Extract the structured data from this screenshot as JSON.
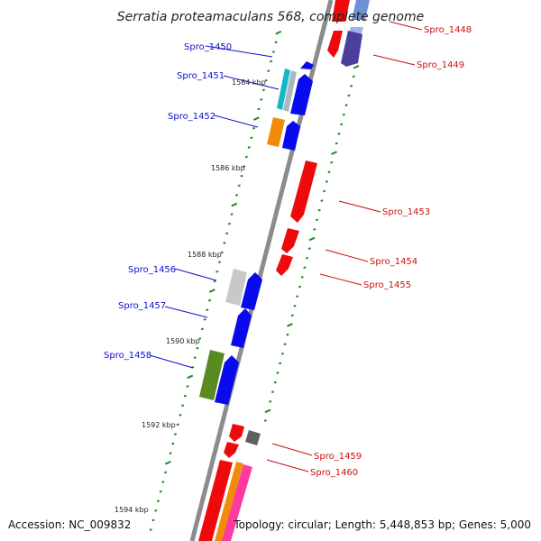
{
  "title": "Serratia proteamaculans 568, complete genome",
  "footer": {
    "accession": "Accession: NC_009832",
    "topology": "Topology: circular; Length: 5,448,853 bp; Genes: 5,000"
  },
  "scale_labels": [
    "1584 kbp",
    "1586 kbp",
    "1588 kbp",
    "1590 kbp",
    "1592 kbp",
    "1594 kbp"
  ],
  "gene_labels_left": [
    "Spro_1450",
    "Spro_1451",
    "Spro_1452",
    "Spro_1456",
    "Spro_1457",
    "Spro_1458"
  ],
  "gene_labels_right": [
    "Spro_1448",
    "Spro_1449",
    "Spro_1453",
    "Spro_1454",
    "Spro_1455",
    "Spro_1459",
    "Spro_1460"
  ],
  "colors": {
    "backbone": "#8a8a8a",
    "forward_strand": "#0a0aee",
    "reverse_strand": "#ee0a0a",
    "tick_marks": "#1a8a1a",
    "label_left": "#1010cc",
    "label_right": "#cc1010"
  }
}
